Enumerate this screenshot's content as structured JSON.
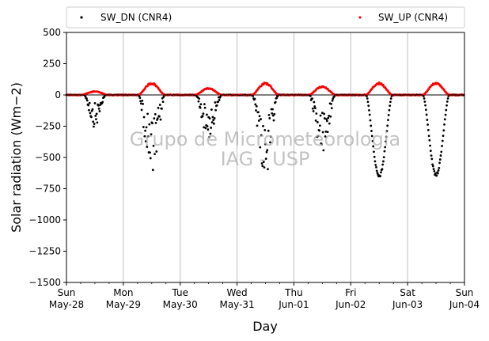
{
  "chart_data": {
    "type": "scatter",
    "title": "",
    "xlabel": "Day",
    "ylabel": "Solar radiation ($Wm−2$)",
    "ylabel_display": "Solar radiation (Wm−2)",
    "ylim": [
      -1500,
      500
    ],
    "yticks": [
      500,
      250,
      0,
      -250,
      -500,
      -750,
      -1000,
      -1250,
      -1500
    ],
    "ytick_labels": [
      "500",
      "250",
      "0",
      "−250",
      "−500",
      "−750",
      "−1000",
      "−1250",
      "−1500"
    ],
    "xlim": [
      "2017-05-28",
      "2017-06-04"
    ],
    "xticks": [
      {
        "day": "Sun",
        "date": "May-28"
      },
      {
        "day": "Mon",
        "date": "May-29"
      },
      {
        "day": "Tue",
        "date": "May-30"
      },
      {
        "day": "Wed",
        "date": "May-31"
      },
      {
        "day": "Thu",
        "date": "Jun-01"
      },
      {
        "day": "Fri",
        "date": "Jun-02"
      },
      {
        "day": "Sat",
        "date": "Jun-03"
      },
      {
        "day": "Sun",
        "date": "Jun-04"
      }
    ],
    "grid": "vertical",
    "legend_position": "top",
    "zero_line": true,
    "series": [
      {
        "name": "SW_DN (CNR4)",
        "color": "#000000",
        "points_per_day": [
          {
            "date": "May-28",
            "peak": -260,
            "clear_sky": false,
            "min_hour": 8,
            "max_hour": 16
          },
          {
            "date": "May-29",
            "peak": -690,
            "clear_sky": false,
            "min_hour": 7,
            "max_hour": 17
          },
          {
            "date": "May-30",
            "peak": -350,
            "clear_sky": false,
            "min_hour": 7,
            "max_hour": 17
          },
          {
            "date": "May-31",
            "peak": -670,
            "clear_sky": false,
            "min_hour": 7,
            "max_hour": 17
          },
          {
            "date": "Jun-01",
            "peak": -500,
            "clear_sky": false,
            "min_hour": 7,
            "max_hour": 17
          },
          {
            "date": "Jun-02",
            "peak": -660,
            "clear_sky": true,
            "min_hour": 7,
            "max_hour": 17
          },
          {
            "date": "Jun-03",
            "peak": -650,
            "clear_sky": true,
            "min_hour": 7,
            "max_hour": 17
          }
        ]
      },
      {
        "name": "SW_UP (CNR4)",
        "color": "#ff0000",
        "points_per_day": [
          {
            "date": "May-28",
            "peak": 30
          },
          {
            "date": "May-29",
            "peak": 100
          },
          {
            "date": "May-30",
            "peak": 55
          },
          {
            "date": "May-31",
            "peak": 100
          },
          {
            "date": "Jun-01",
            "peak": 70
          },
          {
            "date": "Jun-02",
            "peak": 100
          },
          {
            "date": "Jun-03",
            "peak": 100
          }
        ]
      }
    ],
    "watermark": [
      "Grupo de Micrometeorologia",
      "IAG - USP"
    ]
  }
}
